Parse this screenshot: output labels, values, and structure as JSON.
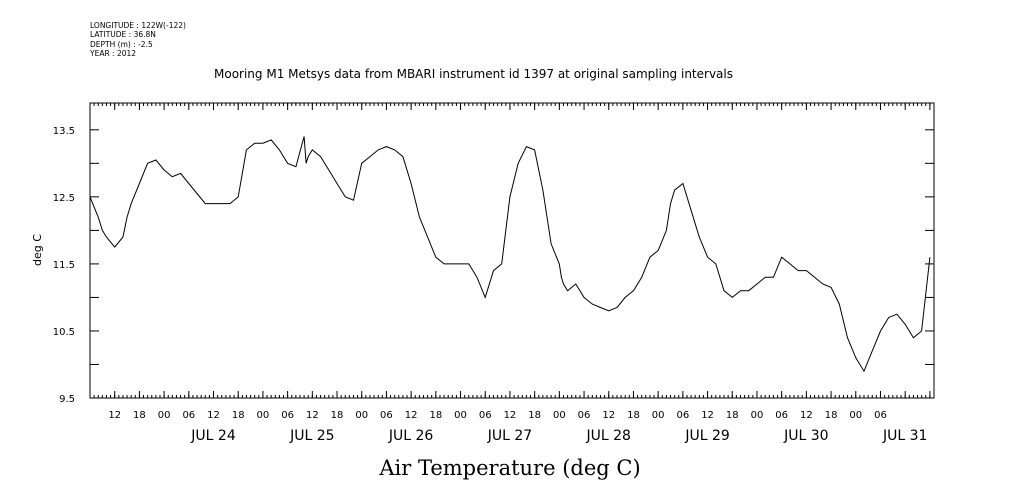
{
  "meta": {
    "longitude": "LONGITUDE : 122W(-122)",
    "latitude": "LATITUDE : 36.8N",
    "depth": "DEPTH (m) : -2.5",
    "year": "YEAR : 2012"
  },
  "chart_data": {
    "type": "line",
    "title": "Mooring M1 Metsys data from MBARI instrument id 1397 at original sampling intervals",
    "xlabel": "Air Temperature (deg C)",
    "ylabel": "deg C",
    "ylim": [
      9.5,
      13.9
    ],
    "xlim_hours": [
      0,
      205
    ],
    "x_start": "JUL 23 2012 06:00",
    "yticks": [
      9.5,
      10.5,
      11.5,
      12.5,
      13.5
    ],
    "ytick_labels": [
      "9.5",
      "10.5",
      "11.5",
      "12.5",
      "13.5"
    ],
    "hour_tick_labels": [
      "12",
      "18",
      "00",
      "06",
      "12",
      "18",
      "00",
      "06",
      "12",
      "18",
      "00",
      "06",
      "12",
      "18",
      "00",
      "06",
      "12",
      "18",
      "00",
      "06",
      "12",
      "18",
      "00",
      "06",
      "12",
      "18",
      "00",
      "06",
      "12",
      "18",
      "00",
      "06"
    ],
    "date_labels": [
      "JUL 24",
      "JUL 25",
      "JUL 26",
      "JUL 27",
      "JUL 28",
      "JUL 29",
      "JUL 30",
      "JUL 31"
    ],
    "grid": false,
    "series": [
      {
        "x_hours": [
          0,
          2,
          3,
          4,
          6,
          8,
          9,
          10,
          12,
          14,
          16,
          18,
          20,
          22,
          24,
          26,
          28,
          30,
          32,
          34,
          36,
          38,
          40,
          42,
          44,
          46,
          48,
          50,
          52,
          52.5,
          53,
          54,
          56,
          58,
          60,
          62,
          64,
          66,
          68,
          70,
          72,
          74,
          76,
          78,
          80,
          82,
          84,
          86,
          88,
          90,
          92,
          94,
          96,
          98,
          100,
          102,
          104,
          106,
          108,
          110,
          112,
          114,
          114.5,
          115,
          116,
          118,
          120,
          122,
          124,
          126,
          128,
          130,
          132,
          134,
          136,
          138,
          140,
          141,
          142,
          144,
          145,
          146,
          147,
          148,
          150,
          152,
          154,
          156,
          158,
          160,
          162,
          164,
          166,
          168,
          170,
          172,
          174,
          176,
          178,
          180,
          182,
          184,
          186,
          188,
          190,
          192,
          194,
          196,
          198,
          200,
          202,
          204
        ],
        "values": [
          12.5,
          12.2,
          12.0,
          11.9,
          11.75,
          11.9,
          12.2,
          12.4,
          12.7,
          13.0,
          13.05,
          12.9,
          12.8,
          12.85,
          12.7,
          12.55,
          12.4,
          12.4,
          12.4,
          12.4,
          12.5,
          13.2,
          13.3,
          13.3,
          13.35,
          13.2,
          13.0,
          12.95,
          13.4,
          13.0,
          13.1,
          13.2,
          13.1,
          12.9,
          12.7,
          12.5,
          12.45,
          13.0,
          13.1,
          13.2,
          13.25,
          13.2,
          13.1,
          12.7,
          12.2,
          11.9,
          11.6,
          11.5,
          11.5,
          11.5,
          11.5,
          11.3,
          11.0,
          11.4,
          11.5,
          12.5,
          13.0,
          13.25,
          13.2,
          12.6,
          11.8,
          11.5,
          11.3,
          11.2,
          11.1,
          11.2,
          11.0,
          10.9,
          10.85,
          10.8,
          10.85,
          11.0,
          11.1,
          11.3,
          11.6,
          11.7,
          12.0,
          12.4,
          12.6,
          12.7,
          12.5,
          12.3,
          12.1,
          11.9,
          11.6,
          11.5,
          11.1,
          11.0,
          11.1,
          11.1,
          11.2,
          11.3,
          11.3,
          11.6,
          11.5,
          11.4,
          11.4,
          11.3,
          11.2,
          11.15,
          10.9,
          10.4,
          10.1,
          9.9,
          10.2,
          10.5,
          10.7,
          10.75,
          10.6,
          10.4,
          10.5,
          11.6
        ]
      }
    ]
  }
}
